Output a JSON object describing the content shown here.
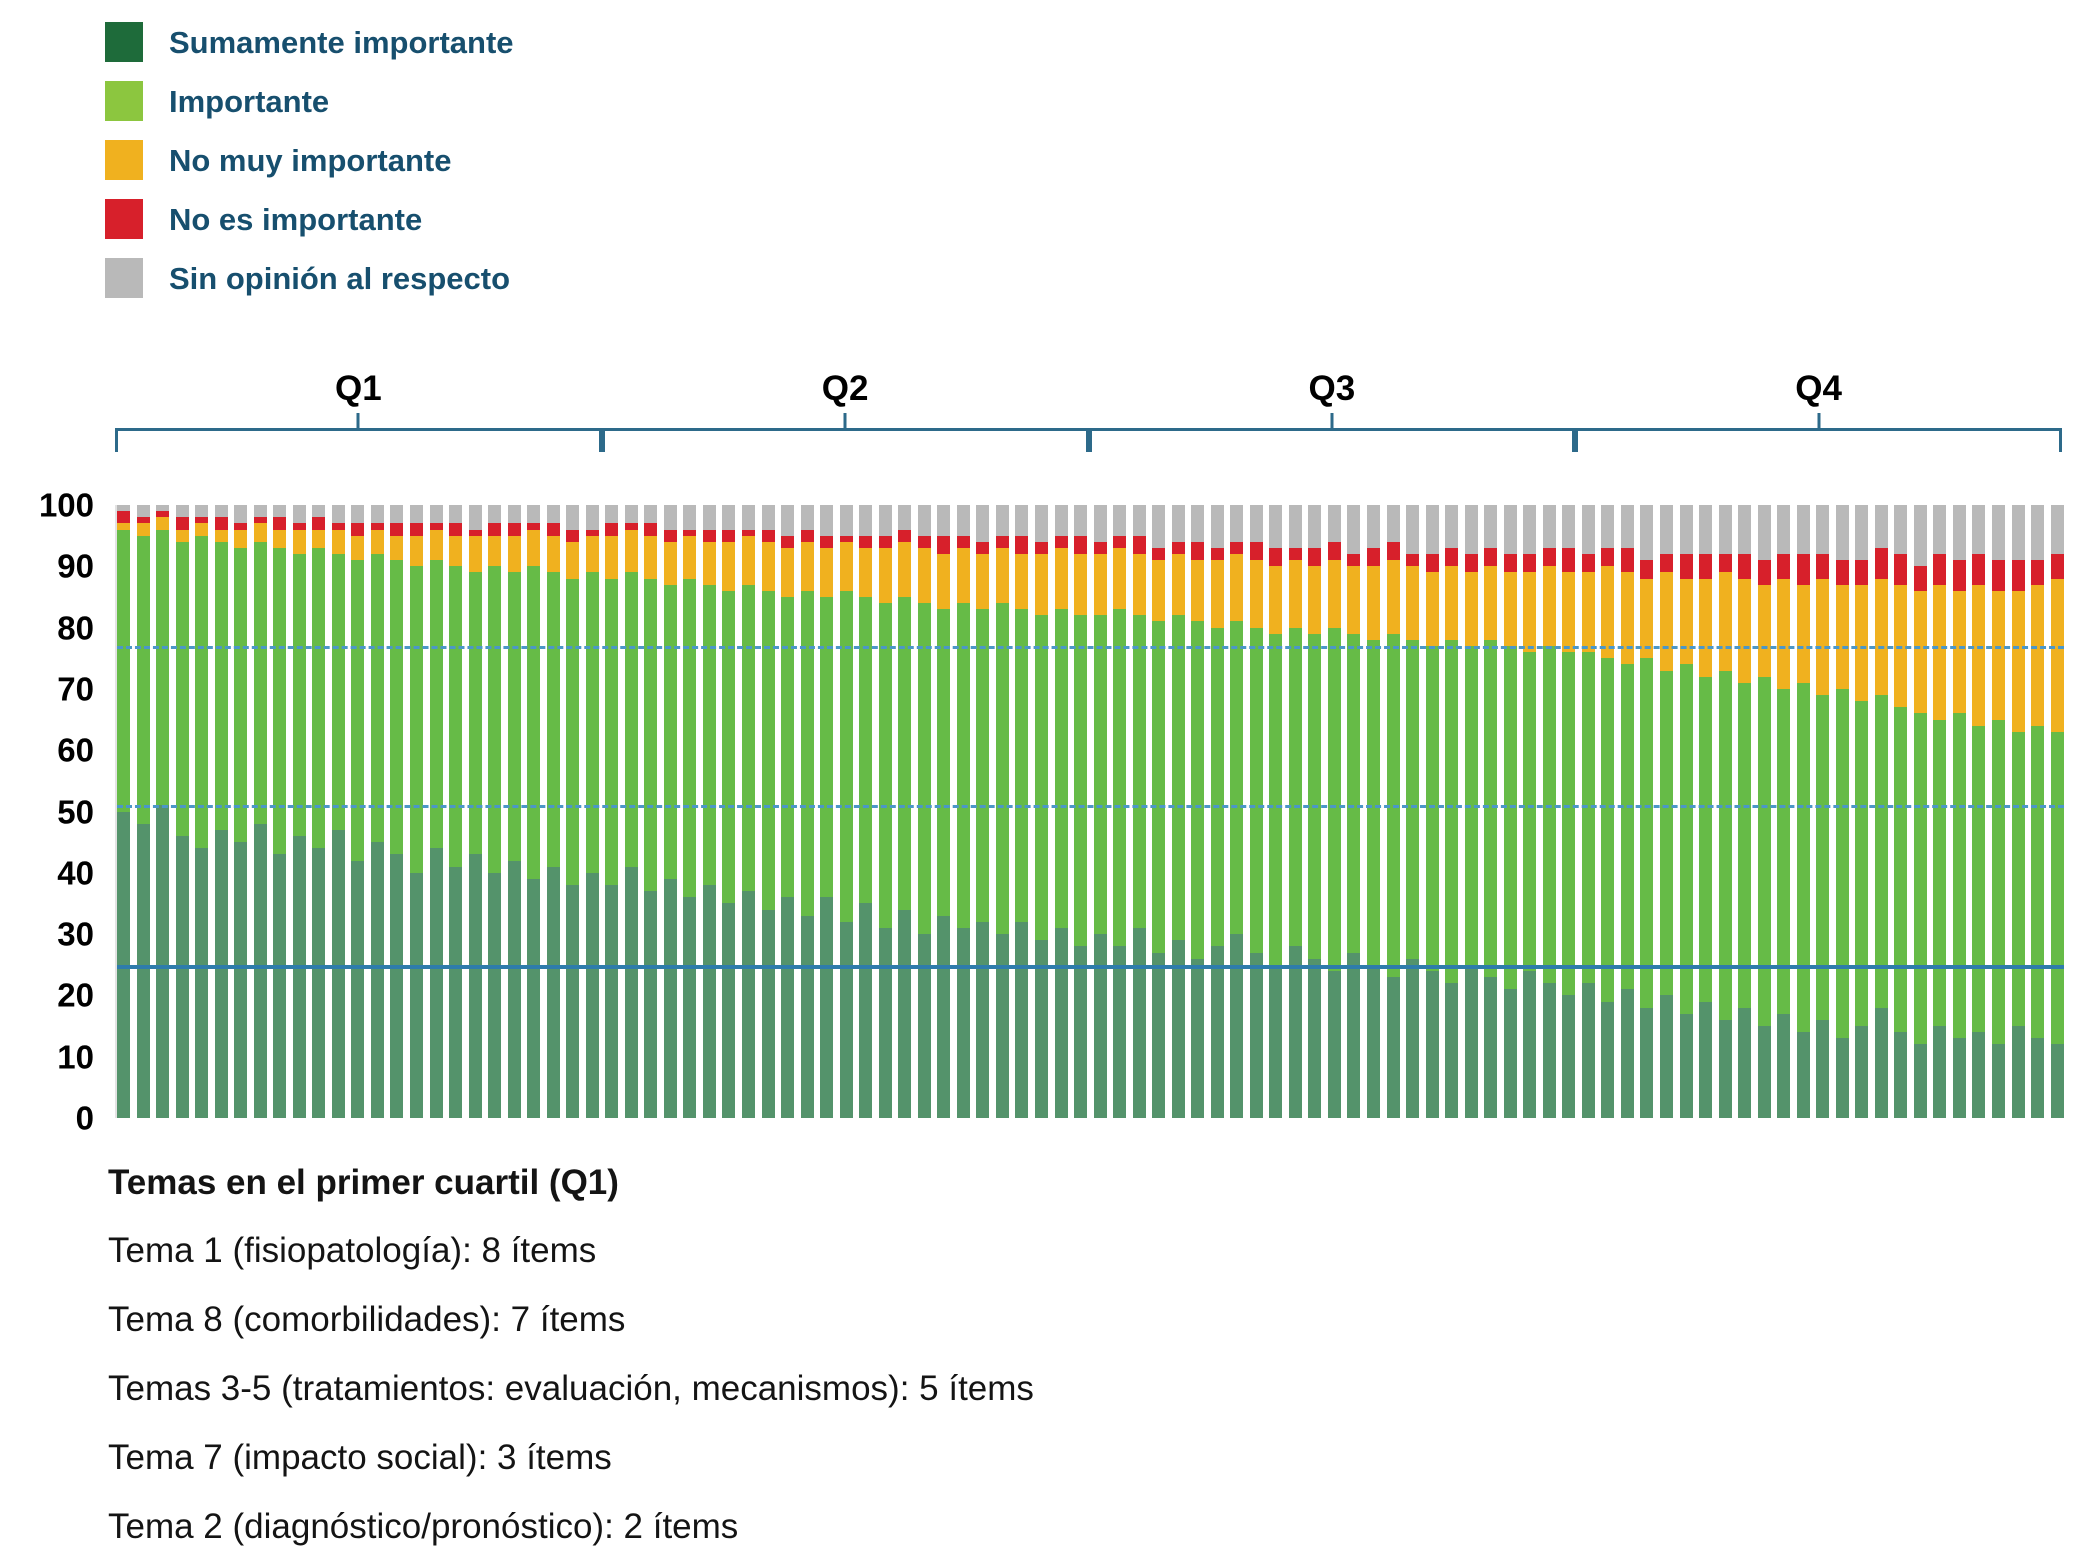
{
  "legend": {
    "items": [
      {
        "label": "Sumamente importante",
        "color": "#1e6b3a"
      },
      {
        "label": "Importante",
        "color": "#8cc63f"
      },
      {
        "label": "No muy importante",
        "color": "#f0b11f"
      },
      {
        "label": "No es importante",
        "color": "#d7202b"
      },
      {
        "label": "Sin opinión al respecto",
        "color": "#b9b9b9"
      }
    ]
  },
  "chart_data": {
    "type": "bar",
    "stacked": true,
    "title": "",
    "xlabel": "",
    "ylabel": "",
    "ylim": [
      0,
      100
    ],
    "yticks": [
      0,
      10,
      20,
      30,
      40,
      50,
      60,
      70,
      80,
      90,
      100
    ],
    "bar_count": 100,
    "legend_position": "top-left",
    "grid": false,
    "quartiles": [
      {
        "label": "Q1",
        "start": 1,
        "end": 25
      },
      {
        "label": "Q2",
        "start": 26,
        "end": 50
      },
      {
        "label": "Q3",
        "start": 51,
        "end": 75
      },
      {
        "label": "Q4",
        "start": 76,
        "end": 100
      }
    ],
    "reference_lines": [
      {
        "y": 77,
        "style": "dashed",
        "color": "#4b97c8"
      },
      {
        "y": 51,
        "style": "dashed",
        "color": "#4b97c8"
      },
      {
        "y": 25,
        "style": "solid",
        "color": "#2e7cab"
      }
    ],
    "series": [
      {
        "name": "Sumamente importante",
        "color": "#1e6b3a",
        "values": [
          50,
          48,
          51,
          46,
          44,
          47,
          45,
          48,
          43,
          46,
          44,
          47,
          42,
          45,
          43,
          40,
          44,
          41,
          43,
          40,
          42,
          39,
          41,
          38,
          40,
          38,
          41,
          37,
          39,
          36,
          38,
          35,
          37,
          34,
          36,
          33,
          36,
          32,
          35,
          31,
          34,
          30,
          33,
          31,
          32,
          30,
          32,
          29,
          31,
          28,
          30,
          28,
          31,
          27,
          29,
          26,
          28,
          30,
          27,
          25,
          28,
          26,
          24,
          27,
          25,
          23,
          26,
          24,
          22,
          25,
          23,
          21,
          24,
          22,
          20,
          22,
          19,
          21,
          18,
          20,
          17,
          19,
          16,
          18,
          15,
          17,
          14,
          16,
          13,
          15,
          18,
          14,
          12,
          15,
          13,
          14,
          12,
          15,
          13,
          12
        ]
      },
      {
        "name": "Importante",
        "color": "#66bb47",
        "values": [
          46,
          47,
          45,
          48,
          51,
          47,
          48,
          46,
          50,
          46,
          49,
          45,
          49,
          47,
          48,
          50,
          47,
          49,
          46,
          50,
          47,
          51,
          48,
          50,
          49,
          50,
          48,
          51,
          48,
          52,
          49,
          51,
          50,
          52,
          49,
          53,
          49,
          54,
          50,
          53,
          51,
          54,
          50,
          53,
          51,
          54,
          51,
          53,
          52,
          54,
          52,
          55,
          51,
          54,
          53,
          55,
          52,
          51,
          53,
          54,
          52,
          53,
          56,
          52,
          53,
          56,
          52,
          53,
          56,
          52,
          55,
          56,
          52,
          55,
          56,
          54,
          56,
          53,
          57,
          53,
          57,
          53,
          57,
          53,
          57,
          53,
          57,
          53,
          57,
          53,
          51,
          53,
          54,
          50,
          53,
          50,
          53,
          48,
          51,
          51
        ]
      },
      {
        "name": "No muy importante",
        "color": "#f0b11f",
        "values": [
          1,
          2,
          2,
          2,
          2,
          2,
          3,
          3,
          3,
          4,
          3,
          4,
          4,
          4,
          4,
          5,
          5,
          5,
          6,
          5,
          6,
          6,
          6,
          6,
          6,
          7,
          7,
          7,
          7,
          7,
          7,
          8,
          8,
          8,
          8,
          8,
          8,
          8,
          8,
          9,
          9,
          9,
          9,
          9,
          9,
          9,
          9,
          10,
          10,
          10,
          10,
          10,
          10,
          10,
          10,
          10,
          11,
          11,
          11,
          11,
          11,
          11,
          11,
          11,
          12,
          12,
          12,
          12,
          12,
          12,
          12,
          12,
          13,
          13,
          13,
          13,
          15,
          15,
          13,
          16,
          14,
          16,
          16,
          17,
          15,
          18,
          16,
          19,
          17,
          19,
          19,
          20,
          20,
          22,
          20,
          23,
          21,
          23,
          23,
          25
        ]
      },
      {
        "name": "No es importante",
        "color": "#d7202b",
        "values": [
          2,
          1,
          1,
          2,
          1,
          2,
          1,
          1,
          2,
          1,
          2,
          1,
          2,
          1,
          2,
          2,
          1,
          2,
          1,
          2,
          2,
          1,
          2,
          2,
          1,
          2,
          1,
          2,
          2,
          1,
          2,
          2,
          1,
          2,
          2,
          2,
          2,
          1,
          2,
          2,
          2,
          2,
          3,
          2,
          2,
          2,
          3,
          2,
          2,
          3,
          2,
          2,
          3,
          2,
          2,
          3,
          2,
          2,
          3,
          3,
          2,
          3,
          3,
          2,
          3,
          3,
          2,
          3,
          3,
          3,
          3,
          3,
          3,
          3,
          4,
          3,
          3,
          4,
          3,
          3,
          4,
          4,
          3,
          4,
          4,
          4,
          5,
          4,
          4,
          4,
          5,
          5,
          4,
          5,
          5,
          5,
          5,
          5,
          4,
          4
        ]
      },
      {
        "name": "Sin opinión al respecto",
        "color": "#b9b9b9",
        "values": [
          1,
          2,
          1,
          2,
          2,
          2,
          3,
          2,
          2,
          3,
          2,
          3,
          3,
          3,
          3,
          3,
          3,
          3,
          4,
          3,
          3,
          3,
          3,
          4,
          4,
          3,
          3,
          3,
          4,
          4,
          4,
          4,
          4,
          4,
          5,
          4,
          5,
          5,
          5,
          5,
          4,
          5,
          5,
          5,
          6,
          5,
          5,
          6,
          5,
          5,
          6,
          5,
          5,
          7,
          6,
          6,
          7,
          6,
          6,
          7,
          7,
          7,
          6,
          8,
          7,
          6,
          8,
          8,
          7,
          8,
          7,
          8,
          8,
          7,
          7,
          8,
          7,
          7,
          9,
          8,
          8,
          8,
          8,
          8,
          9,
          8,
          8,
          8,
          9,
          9,
          7,
          8,
          10,
          8,
          9,
          8,
          9,
          9,
          9,
          8
        ]
      }
    ]
  },
  "notes": {
    "title": "Temas en el primer cuartil (Q1)",
    "lines": [
      "Tema 1 (fisiopatología): 8 ítems",
      "Tema 8 (comorbilidades): 7 ítems",
      "Temas 3-5 (tratamientos: evaluación, mecanismos): 5 ítems",
      "Tema 7 (impacto social): 3 ítems",
      "Tema 2 (diagnóstico/pronóstico): 2 ítems"
    ]
  }
}
